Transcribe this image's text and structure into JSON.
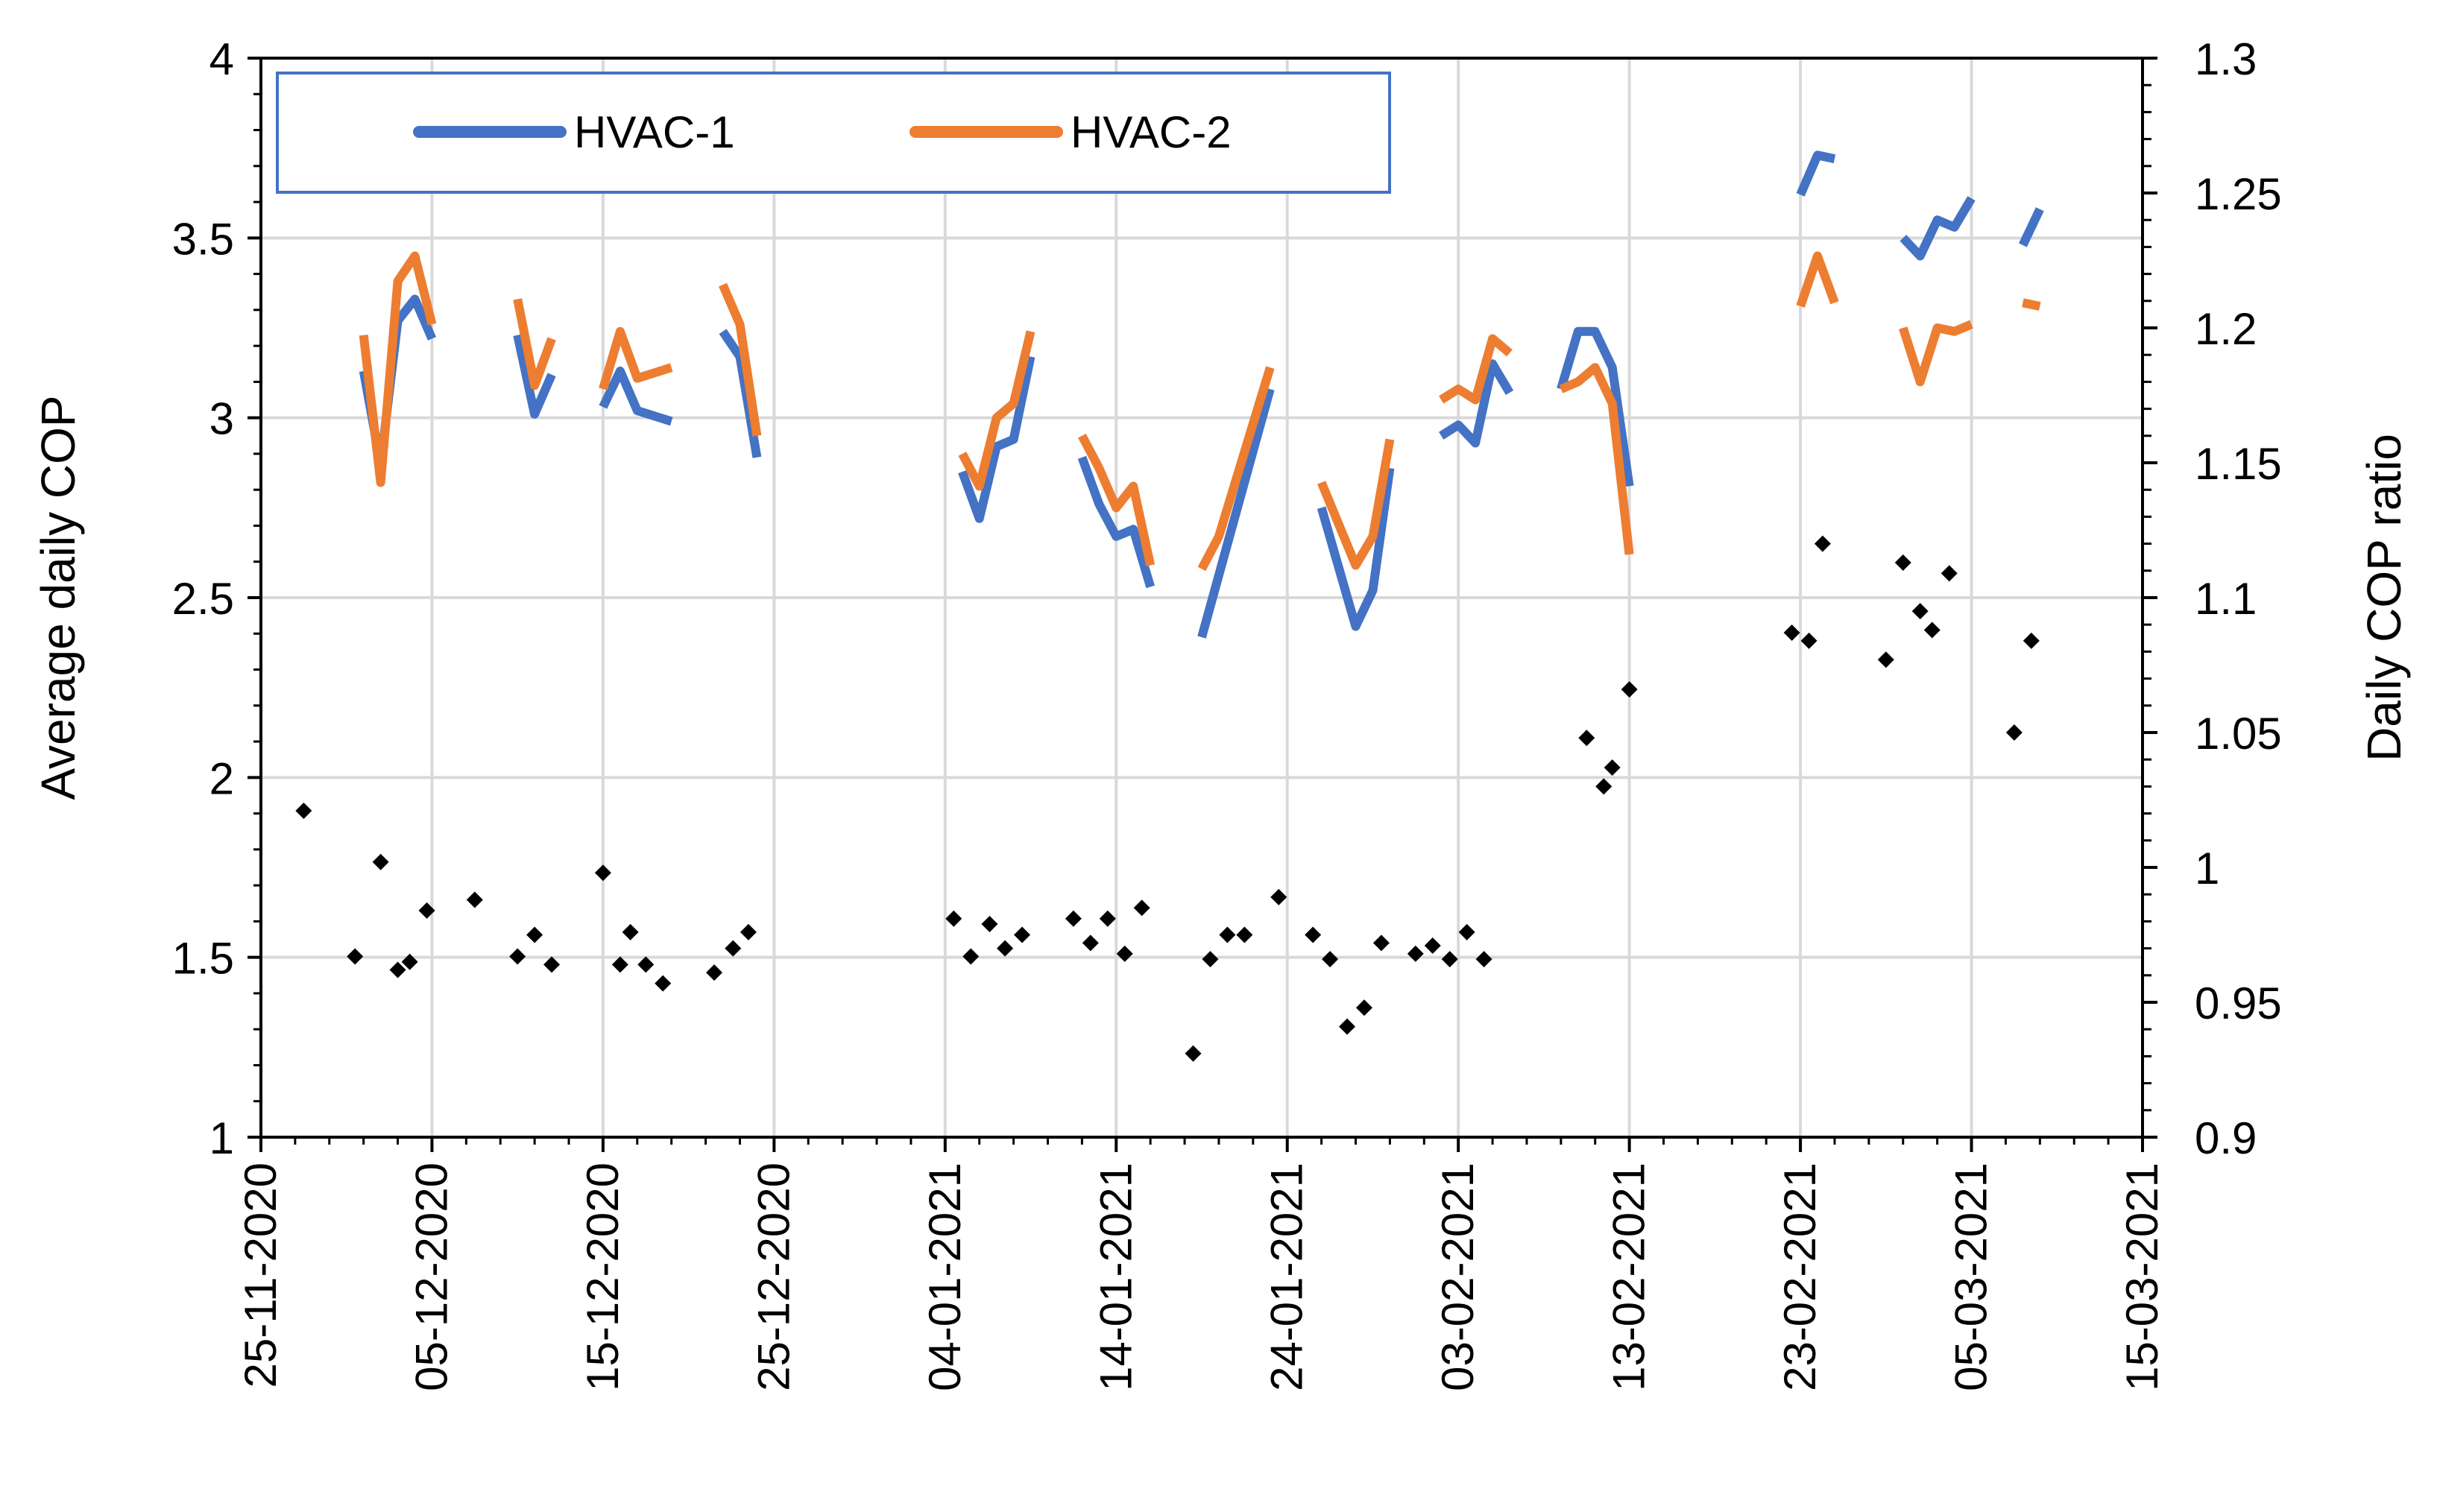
{
  "chart_data": {
    "type": "line",
    "title": "",
    "xlabel": "",
    "ylabel": "Average daily COP",
    "y2label": "Daily COP ratio",
    "ylim": [
      1,
      4
    ],
    "y2lim": [
      0.9,
      1.3
    ],
    "xlim_day": [
      0,
      110
    ],
    "grid": true,
    "legend_placement": "top-left",
    "x_ticks": [
      {
        "day": 0,
        "label": "25-11-2020"
      },
      {
        "day": 10,
        "label": "05-12-2020"
      },
      {
        "day": 20,
        "label": "15-12-2020"
      },
      {
        "day": 30,
        "label": "25-12-2020"
      },
      {
        "day": 40,
        "label": "04-01-2021"
      },
      {
        "day": 50,
        "label": "14-01-2021"
      },
      {
        "day": 60,
        "label": "24-01-2021"
      },
      {
        "day": 70,
        "label": "03-02-2021"
      },
      {
        "day": 80,
        "label": "13-02-2021"
      },
      {
        "day": 90,
        "label": "23-02-2021"
      },
      {
        "day": 100,
        "label": "05-03-2021"
      },
      {
        "day": 110,
        "label": "15-03-2021"
      }
    ],
    "y_ticks": [
      "1",
      "1.5",
      "2",
      "2.5",
      "3",
      "3.5",
      "4"
    ],
    "y2_ticks": [
      "0.9",
      "0.95",
      "1",
      "1.05",
      "1.1",
      "1.15",
      "1.2",
      "1.25",
      "1.3"
    ],
    "series": [
      {
        "name": "HVAC-1",
        "color": "#4472C4",
        "axis": "left",
        "segments": [
          [
            [
              6,
              3.13
            ],
            [
              7,
              2.87
            ],
            [
              8,
              3.27
            ],
            [
              9,
              3.33
            ],
            [
              10,
              3.22
            ]
          ],
          [
            [
              15,
              3.23
            ],
            [
              16,
              3.01
            ],
            [
              17,
              3.12
            ]
          ],
          [
            [
              20,
              3.03
            ],
            [
              21,
              3.13
            ],
            [
              22,
              3.02
            ],
            [
              24,
              2.99
            ]
          ],
          [
            [
              27,
              3.24
            ],
            [
              28,
              3.17
            ],
            [
              29,
              2.89
            ]
          ],
          [
            [
              41,
              2.85
            ],
            [
              42,
              2.72
            ],
            [
              43,
              2.92
            ],
            [
              44,
              2.94
            ],
            [
              45,
              3.17
            ]
          ],
          [
            [
              48,
              2.89
            ],
            [
              49,
              2.76
            ],
            [
              50,
              2.67
            ],
            [
              51,
              2.69
            ],
            [
              52,
              2.53
            ]
          ],
          [
            [
              55,
              2.39
            ],
            [
              59,
              3.08
            ]
          ],
          [
            [
              62,
              2.75
            ],
            [
              64,
              2.42
            ],
            [
              65,
              2.52
            ],
            [
              66,
              2.86
            ]
          ],
          [
            [
              69,
              2.95
            ],
            [
              70,
              2.98
            ],
            [
              71,
              2.93
            ],
            [
              72,
              3.15
            ],
            [
              73,
              3.07
            ]
          ],
          [
            [
              76,
              3.08
            ],
            [
              77,
              3.24
            ],
            [
              78,
              3.24
            ],
            [
              79,
              3.14
            ],
            [
              80,
              2.81
            ]
          ],
          [
            [
              90,
              3.62
            ],
            [
              91,
              3.73
            ],
            [
              92,
              3.72
            ]
          ],
          [
            [
              96,
              3.5
            ],
            [
              97,
              3.45
            ],
            [
              98,
              3.55
            ],
            [
              99,
              3.53
            ],
            [
              100,
              3.61
            ]
          ],
          [
            [
              103,
              3.48
            ],
            [
              104,
              3.58
            ]
          ]
        ]
      },
      {
        "name": "HVAC-2",
        "color": "#ED7D31",
        "axis": "left",
        "segments": [
          [
            [
              6,
              3.23
            ],
            [
              7,
              2.82
            ],
            [
              8,
              3.38
            ],
            [
              9,
              3.45
            ],
            [
              10,
              3.26
            ]
          ],
          [
            [
              15,
              3.33
            ],
            [
              16,
              3.09
            ],
            [
              17,
              3.22
            ]
          ],
          [
            [
              20,
              3.08
            ],
            [
              21,
              3.24
            ],
            [
              22,
              3.11
            ],
            [
              24,
              3.14
            ]
          ],
          [
            [
              27,
              3.37
            ],
            [
              28,
              3.26
            ],
            [
              29,
              2.95
            ]
          ],
          [
            [
              41,
              2.9
            ],
            [
              42,
              2.81
            ],
            [
              43,
              3.0
            ],
            [
              44,
              3.04
            ],
            [
              45,
              3.24
            ]
          ],
          [
            [
              48,
              2.95
            ],
            [
              49,
              2.86
            ],
            [
              50,
              2.75
            ],
            [
              51,
              2.81
            ],
            [
              52,
              2.59
            ]
          ],
          [
            [
              55,
              2.58
            ],
            [
              56,
              2.67
            ],
            [
              59,
              3.14
            ]
          ],
          [
            [
              62,
              2.82
            ],
            [
              64,
              2.59
            ],
            [
              65,
              2.67
            ],
            [
              66,
              2.94
            ]
          ],
          [
            [
              69,
              3.05
            ],
            [
              70,
              3.08
            ],
            [
              71,
              3.05
            ],
            [
              72,
              3.22
            ],
            [
              73,
              3.18
            ]
          ],
          [
            [
              76,
              3.08
            ],
            [
              77,
              3.1
            ],
            [
              78,
              3.14
            ],
            [
              79,
              3.04
            ],
            [
              80,
              2.62
            ]
          ],
          [
            [
              90,
              3.31
            ],
            [
              91,
              3.45
            ],
            [
              92,
              3.32
            ]
          ],
          [
            [
              96,
              3.25
            ],
            [
              97,
              3.1
            ],
            [
              98,
              3.25
            ],
            [
              99,
              3.24
            ],
            [
              100,
              3.26
            ]
          ],
          [
            [
              103,
              3.32
            ],
            [
              104,
              3.31
            ]
          ]
        ]
      },
      {
        "name": "Daily COP ratio",
        "color": "#000000",
        "axis": "right",
        "marker": "diamond",
        "points": [
          [
            2.5,
            1.021
          ],
          [
            5.5,
            0.967
          ],
          [
            7,
            1.002
          ],
          [
            8,
            0.962
          ],
          [
            8.7,
            0.965
          ],
          [
            9.7,
            0.984
          ],
          [
            12.5,
            0.988
          ],
          [
            15,
            0.967
          ],
          [
            16,
            0.975
          ],
          [
            17,
            0.964
          ],
          [
            20,
            0.998
          ],
          [
            21,
            0.964
          ],
          [
            21.6,
            0.976
          ],
          [
            22.5,
            0.964
          ],
          [
            23.5,
            0.957
          ],
          [
            26.5,
            0.961
          ],
          [
            27.6,
            0.97
          ],
          [
            28.5,
            0.976
          ],
          [
            40.5,
            0.981
          ],
          [
            41.5,
            0.967
          ],
          [
            42.6,
            0.979
          ],
          [
            43.5,
            0.97
          ],
          [
            44.5,
            0.975
          ],
          [
            47.5,
            0.981
          ],
          [
            48.5,
            0.972
          ],
          [
            49.5,
            0.981
          ],
          [
            50.5,
            0.968
          ],
          [
            51.5,
            0.985
          ],
          [
            54.5,
            0.931
          ],
          [
            55.5,
            0.966
          ],
          [
            56.5,
            0.975
          ],
          [
            57.5,
            0.975
          ],
          [
            59.5,
            0.989
          ],
          [
            61.5,
            0.975
          ],
          [
            62.5,
            0.966
          ],
          [
            63.5,
            0.941
          ],
          [
            64.5,
            0.948
          ],
          [
            65.5,
            0.972
          ],
          [
            67.5,
            0.968
          ],
          [
            68.5,
            0.971
          ],
          [
            69.5,
            0.966
          ],
          [
            70.5,
            0.976
          ],
          [
            71.5,
            0.966
          ],
          [
            77.5,
            1.048
          ],
          [
            78.5,
            1.03
          ],
          [
            79,
            1.037
          ],
          [
            80,
            1.066
          ],
          [
            89.5,
            1.087
          ],
          [
            90.5,
            1.084
          ],
          [
            91.3,
            1.12
          ],
          [
            95,
            1.077
          ],
          [
            96,
            1.113
          ],
          [
            97,
            1.095
          ],
          [
            97.7,
            1.088
          ],
          [
            98.7,
            1.109
          ],
          [
            102.5,
            1.05
          ],
          [
            103.5,
            1.084
          ]
        ]
      }
    ]
  }
}
